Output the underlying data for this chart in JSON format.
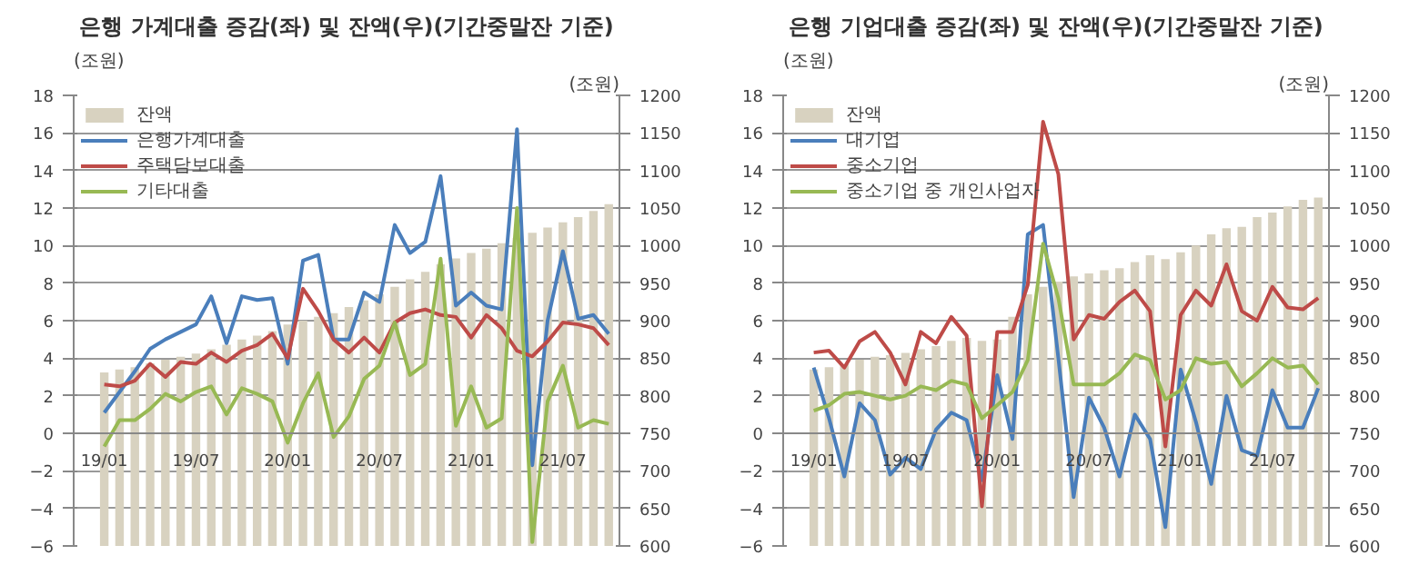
{
  "chart_data": [
    {
      "type": "line",
      "title": "은행 가계대출 증감(좌) 및 잔액(우)(기간중말잔 기준)",
      "ylabel": "(조원)",
      "y2label": "(조원)",
      "categories": [
        "19/01",
        null,
        null,
        null,
        null,
        null,
        "19/07",
        null,
        null,
        null,
        null,
        null,
        "20/01",
        null,
        null,
        null,
        null,
        null,
        "20/07",
        null,
        null,
        null,
        null,
        null,
        "21/01",
        null,
        null,
        null,
        null,
        null,
        "21/07",
        null,
        null,
        null
      ],
      "ylim": [
        -6,
        18
      ],
      "yticks": [
        -6,
        -4,
        -2,
        0,
        2,
        4,
        6,
        8,
        10,
        12,
        14,
        16,
        18
      ],
      "y2lim": [
        600,
        1200
      ],
      "y2ticks": [
        600,
        650,
        700,
        750,
        800,
        850,
        900,
        950,
        1000,
        1050,
        1100,
        1150,
        1200
      ],
      "grid": "y",
      "legend": "top left",
      "series": [
        {
          "name": "잔액",
          "type": "bar",
          "axis": "y2",
          "color": "#d8d2c0",
          "values": [
            831,
            835,
            838,
            843,
            848,
            852,
            856,
            862,
            868,
            875,
            880,
            886,
            895,
            900,
            905,
            910,
            918,
            927,
            935,
            945,
            955,
            965,
            975,
            983,
            990,
            996,
            1003,
            1010,
            1017,
            1024,
            1031,
            1038,
            1046,
            1055
          ]
        },
        {
          "name": "은행가계대출",
          "color": "#4a7ebb",
          "values": [
            1.1,
            2.2,
            3.3,
            4.5,
            5.0,
            5.4,
            5.8,
            7.3,
            4.8,
            7.3,
            7.1,
            7.2,
            3.7,
            9.2,
            9.5,
            5.0,
            5.0,
            7.5,
            7.0,
            11.1,
            9.6,
            10.2,
            13.7,
            6.8,
            7.5,
            6.8,
            6.6,
            16.2,
            -1.7,
            6.0,
            9.7,
            6.1,
            6.3,
            5.3
          ]
        },
        {
          "name": "주택담보대출",
          "color": "#be4b48",
          "values": [
            2.6,
            2.5,
            2.8,
            3.7,
            3.0,
            3.8,
            3.7,
            4.3,
            3.8,
            4.4,
            4.7,
            5.3,
            4.0,
            7.7,
            6.5,
            5.0,
            4.3,
            5.1,
            4.3,
            5.9,
            6.4,
            6.6,
            6.3,
            6.2,
            5.1,
            6.3,
            5.6,
            4.4,
            4.1,
            4.9,
            5.9,
            5.8,
            5.6,
            4.7
          ]
        },
        {
          "name": "기타대출",
          "color": "#98b954",
          "values": [
            -0.7,
            0.7,
            0.7,
            1.3,
            2.1,
            1.7,
            2.2,
            2.5,
            1.0,
            2.4,
            2.1,
            1.7,
            -0.5,
            1.6,
            3.2,
            -0.2,
            0.9,
            2.9,
            3.6,
            5.9,
            3.1,
            3.7,
            9.3,
            0.4,
            2.5,
            0.3,
            0.8,
            12.0,
            -5.8,
            1.7,
            3.6,
            0.3,
            0.7,
            0.5
          ]
        }
      ]
    },
    {
      "type": "line",
      "title": "은행 기업대출 증감(좌) 및 잔액(우)(기간중말잔 기준)",
      "ylabel": "(조원)",
      "y2label": "(조원)",
      "categories": [
        "19/01",
        null,
        null,
        null,
        null,
        null,
        "19/07",
        null,
        null,
        null,
        null,
        null,
        "20/01",
        null,
        null,
        null,
        null,
        null,
        "20/07",
        null,
        null,
        null,
        null,
        null,
        "21/01",
        null,
        null,
        null,
        null,
        null,
        "21/07",
        null,
        null,
        null
      ],
      "ylim": [
        -6,
        18
      ],
      "yticks": [
        -6,
        -4,
        -2,
        0,
        2,
        4,
        6,
        8,
        10,
        12,
        14,
        16,
        18
      ],
      "y2lim": [
        600,
        1200
      ],
      "y2ticks": [
        600,
        650,
        700,
        750,
        800,
        850,
        900,
        950,
        1000,
        1050,
        1100,
        1150,
        1200
      ],
      "grid": "y",
      "legend": "top left",
      "series": [
        {
          "name": "잔액",
          "type": "bar",
          "axis": "y2",
          "color": "#d8d2c0",
          "values": [
            835,
            838,
            842,
            848,
            852,
            854,
            857,
            862,
            866,
            873,
            877,
            873,
            875,
            905,
            935,
            945,
            952,
            959,
            963,
            967,
            970,
            978,
            987,
            982,
            991,
            1000,
            1015,
            1023,
            1025,
            1038,
            1044,
            1052,
            1061,
            1064
          ]
        },
        {
          "name": "대기업",
          "color": "#4a7ebb",
          "values": [
            3.5,
            0.8,
            -2.3,
            1.6,
            0.7,
            -2.2,
            -1.3,
            -1.9,
            0.2,
            1.1,
            0.7,
            -2.5,
            3.1,
            -0.3,
            10.6,
            11.1,
            4.0,
            -3.4,
            1.9,
            0.3,
            -2.3,
            1.0,
            -0.3,
            -5.0,
            3.4,
            0.6,
            -2.7,
            2.0,
            -0.9,
            -1.2,
            2.3,
            0.3,
            0.3,
            2.4
          ]
        },
        {
          "name": "중소기업",
          "color": "#be4b48",
          "values": [
            4.3,
            4.4,
            3.5,
            4.9,
            5.4,
            4.3,
            2.6,
            5.4,
            4.8,
            6.2,
            5.2,
            -3.9,
            5.4,
            5.4,
            7.9,
            16.6,
            13.8,
            5.0,
            6.3,
            6.1,
            7.0,
            7.6,
            6.5,
            -0.7,
            6.3,
            7.6,
            6.8,
            9.0,
            6.5,
            6.0,
            7.8,
            6.7,
            6.6,
            7.2
          ]
        },
        {
          "name": "중소기업 중 개인사업자",
          "color": "#98b954",
          "values": [
            1.2,
            1.5,
            2.1,
            2.2,
            2.0,
            1.8,
            2.0,
            2.5,
            2.3,
            2.8,
            2.6,
            0.8,
            1.5,
            2.2,
            3.9,
            10.1,
            7.2,
            2.6,
            2.6,
            2.6,
            3.2,
            4.2,
            3.9,
            1.8,
            2.3,
            4.0,
            3.7,
            3.8,
            2.5,
            3.2,
            4.0,
            3.5,
            3.6,
            2.6
          ]
        }
      ]
    }
  ]
}
